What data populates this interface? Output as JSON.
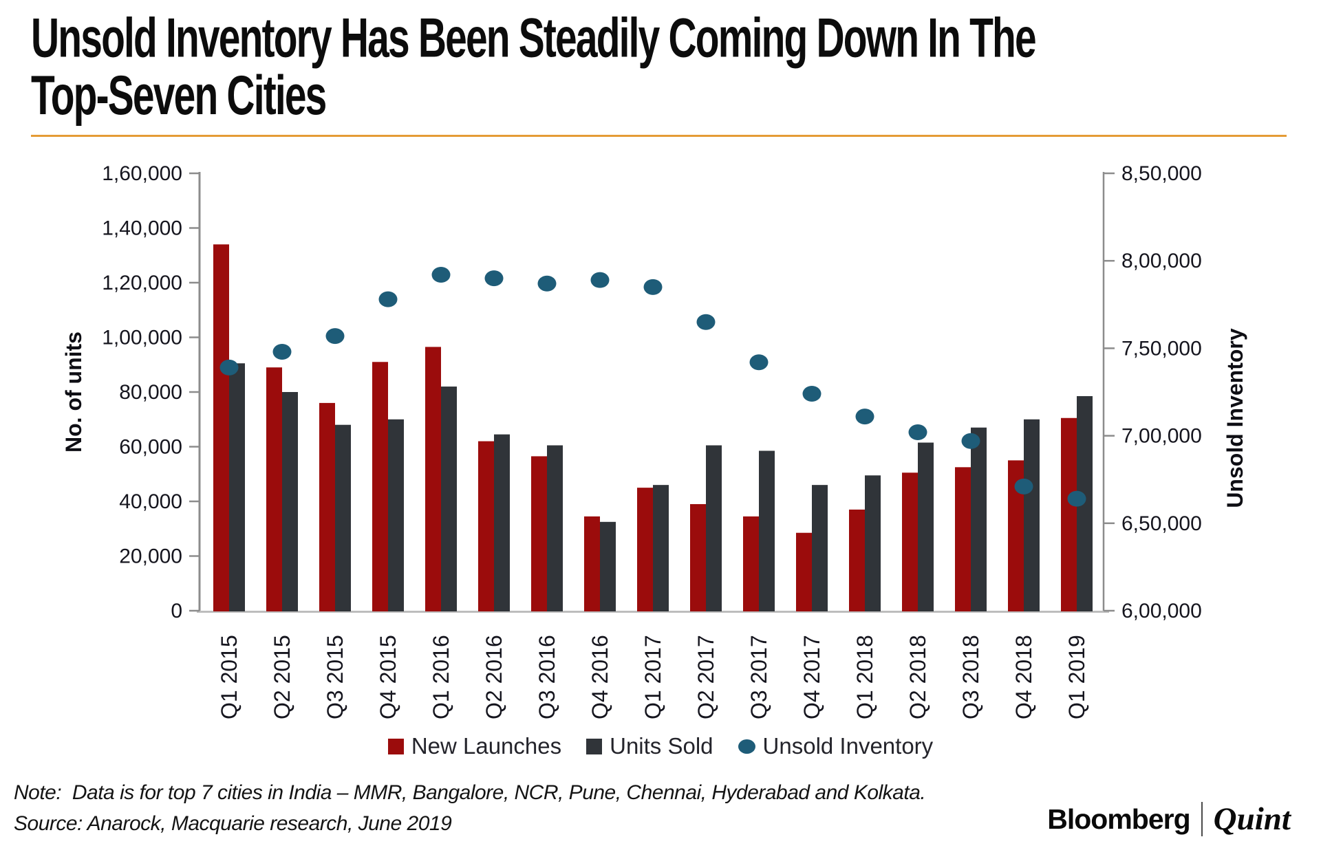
{
  "header": {
    "title": "Unsold Inventory Has Been Steadily Coming Down In The Top-Seven Cities",
    "title_line1": "Unsold Inventory Has Been Steadily Coming Down In The",
    "title_line2": "Top-Seven Cities",
    "divider_color": "#E49B35"
  },
  "chart_data": {
    "type": "combo",
    "categories": [
      "Q1 2015",
      "Q2 2015",
      "Q3 2015",
      "Q4 2015",
      "Q1 2016",
      "Q2 2016",
      "Q3 2016",
      "Q4 2016",
      "Q1 2017",
      "Q2 2017",
      "Q3 2017",
      "Q4 2017",
      "Q1 2018",
      "Q2 2018",
      "Q3 2018",
      "Q4 2018",
      "Q1 2019"
    ],
    "series": [
      {
        "name": "New Launches",
        "type": "bar",
        "axis": "left",
        "color": "#9B0C0C",
        "values": [
          134000,
          89000,
          76000,
          91000,
          96500,
          62000,
          56500,
          34500,
          45000,
          39000,
          34500,
          28500,
          37000,
          50500,
          52500,
          55000,
          70500
        ]
      },
      {
        "name": "Units Sold",
        "type": "bar",
        "axis": "left",
        "color": "#303439",
        "values": [
          90500,
          80000,
          68000,
          70000,
          82000,
          64500,
          60500,
          32500,
          46000,
          60500,
          58500,
          46000,
          49500,
          61500,
          67000,
          70000,
          78500
        ]
      },
      {
        "name": "Unsold Inventory",
        "type": "scatter",
        "axis": "right",
        "color": "#1E5C78",
        "values": [
          739000,
          748000,
          757000,
          778000,
          792000,
          790000,
          787000,
          789000,
          785000,
          765000,
          742000,
          724000,
          711000,
          702000,
          697000,
          671000,
          664000
        ]
      }
    ],
    "left_axis": {
      "label": "No. of units",
      "min": 0,
      "max": 160000,
      "tick_step": 20000,
      "tick_labels": [
        "1,60,000",
        "1,40,000",
        "1,20,000",
        "1,00,000",
        "80,000",
        "60,000",
        "40,000",
        "20,000",
        "0"
      ]
    },
    "right_axis": {
      "label": "Unsold Inventory",
      "min": 600000,
      "max": 850000,
      "tick_step": 50000,
      "tick_labels": [
        "8,50,000",
        "8,00,000",
        "7,50,000",
        "7,00,000",
        "6,50,000",
        "6,00,000"
      ]
    },
    "legend_position": "bottom",
    "grid": false,
    "style": {
      "axis_color": "#8C8C8C",
      "baseline_color": "#BDBDBD",
      "tick_text_color": "#15151E",
      "tick_font_size": 30,
      "category_font_size": 32,
      "axis_title_font_size": 32
    }
  },
  "footnotes": {
    "note": "Note:  Data is for top 7 cities in India – MMR, Bangalore, NCR, Pune, Chennai, Hyderabad and Kolkata.",
    "source": "Source: Anarock, Macquarie research, June 2019"
  },
  "branding": {
    "bloomberg": "Bloomberg",
    "quint": "Quint"
  }
}
